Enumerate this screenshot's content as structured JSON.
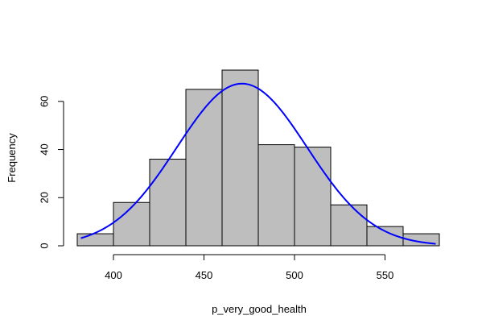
{
  "chart_data": {
    "type": "bar",
    "title": "",
    "xlabel": "p_very_good_health",
    "ylabel": "Frequency",
    "bins": [
      {
        "start": 380,
        "end": 400,
        "value": 5
      },
      {
        "start": 400,
        "end": 420,
        "value": 18
      },
      {
        "start": 420,
        "end": 440,
        "value": 36
      },
      {
        "start": 440,
        "end": 460,
        "value": 65
      },
      {
        "start": 460,
        "end": 480,
        "value": 73
      },
      {
        "start": 480,
        "end": 500,
        "value": 42
      },
      {
        "start": 500,
        "end": 520,
        "value": 41
      },
      {
        "start": 520,
        "end": 540,
        "value": 17
      },
      {
        "start": 540,
        "end": 560,
        "value": 8
      },
      {
        "start": 560,
        "end": 580,
        "value": 5
      }
    ],
    "xticks": [
      400,
      450,
      500,
      550
    ],
    "yticks": [
      0,
      20,
      40,
      60
    ],
    "xlim": [
      380,
      580
    ],
    "ylim": [
      0,
      73
    ],
    "grid": false,
    "legend": "none",
    "density_curve": {
      "type": "normal",
      "mean": 471,
      "sd": 36,
      "scale_count": 6080,
      "x_from": 382,
      "x_to": 578,
      "color": "#0000ff"
    },
    "bar_fill": "#bebebe",
    "bar_edge": "#000000"
  }
}
